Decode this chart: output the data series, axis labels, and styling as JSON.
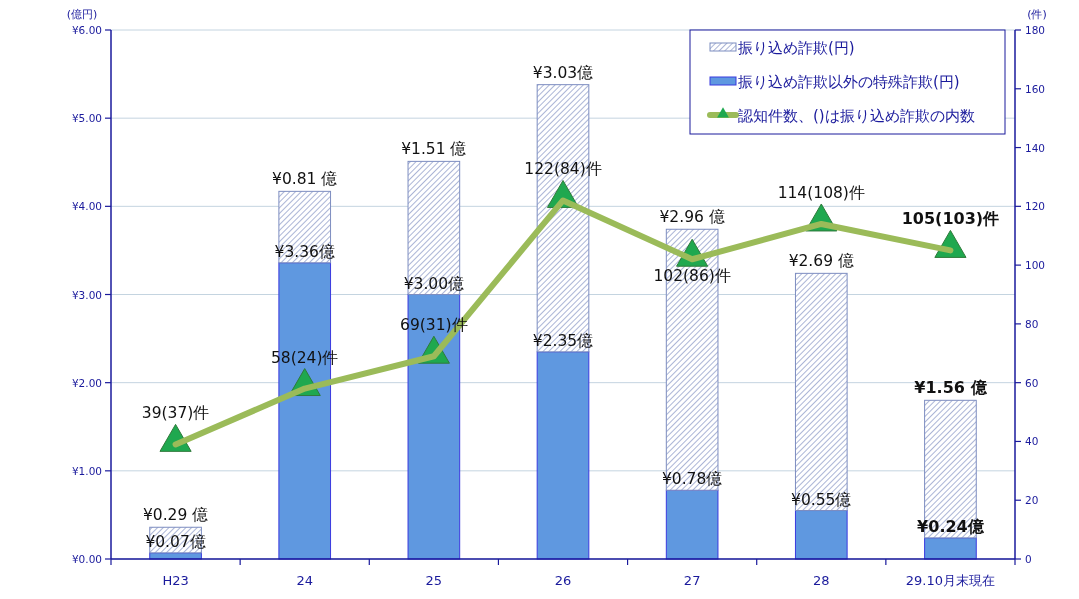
{
  "chart_data": {
    "type": "bar",
    "stacked": true,
    "ylabel": "(億円)",
    "y2label": "(件)",
    "categories": [
      "H23",
      "24",
      "25",
      "26",
      "27",
      "28",
      "29.10月末現在"
    ],
    "ylim": [
      0,
      6
    ],
    "yticks": [
      {
        "value": 0,
        "label": "¥0.00"
      },
      {
        "value": 1,
        "label": "¥1.00"
      },
      {
        "value": 2,
        "label": "¥2.00"
      },
      {
        "value": 3,
        "label": "¥3.00"
      },
      {
        "value": 4,
        "label": "¥4.00"
      },
      {
        "value": 5,
        "label": "¥5.00"
      },
      {
        "value": 6,
        "label": "¥6.00"
      }
    ],
    "y2lim": [
      0,
      180
    ],
    "y2ticks": [
      0,
      20,
      40,
      60,
      80,
      100,
      120,
      140,
      160,
      180
    ],
    "grid": "y",
    "legend": "top right",
    "series": [
      {
        "name": "振り込め詐欺以外の特殊詐欺(円)",
        "color": "#5f98e0",
        "values": [
          0.07,
          3.36,
          3.0,
          2.35,
          0.78,
          0.55,
          0.24
        ],
        "value_labels": [
          "¥0.07億",
          "¥3.36億",
          "¥3.00億",
          "¥2.35億",
          "¥0.78億",
          "¥0.55億",
          "¥0.24億"
        ]
      },
      {
        "name": "振り込め詐欺(円)",
        "color": "#7d8dc0",
        "values": [
          0.29,
          0.81,
          1.51,
          3.03,
          2.96,
          2.69,
          1.56
        ],
        "value_labels": [
          "¥0.29 億",
          "¥0.81 億",
          "¥1.51 億",
          "¥3.03億",
          "¥2.96 億",
          "¥2.69 億",
          "¥1.56 億"
        ]
      },
      {
        "name": "認知件数、()は振り込め詐欺の内数",
        "type": "line",
        "axis": "y2",
        "color": "#9bbb59",
        "colors": [
          "#1fa84f",
          "#1fa84f",
          "#1fa84f",
          "#1fa84f",
          "#1fa84f",
          "#1fa84f",
          "#1fa84f"
        ],
        "marker": "triangle",
        "values": [
          39,
          58,
          69,
          122,
          102,
          114,
          105
        ],
        "value_labels": [
          "39(37)件",
          "58(24)件",
          "69(31)件",
          "122(84)件",
          "102(86)件",
          "114(108)件",
          "105(103)件"
        ]
      }
    ]
  }
}
